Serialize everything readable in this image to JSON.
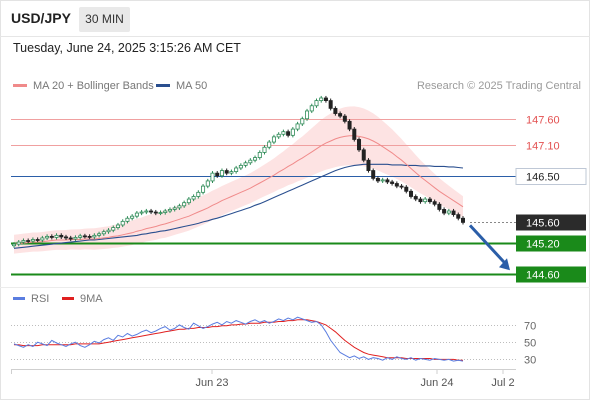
{
  "header": {
    "symbol": "USD/JPY",
    "timeframe": "30 MIN",
    "datetime": "Tuesday, June 24, 2025 3:15:26 AM CET"
  },
  "credit": "Research © 2025 Trading Central",
  "legend": {
    "ma20": {
      "label": "MA 20 + Bollinger Bands",
      "color": "#f08a8a"
    },
    "ma50": {
      "label": "MA 50",
      "color": "#2a4f8f"
    }
  },
  "rsi_legend": {
    "rsi": {
      "label": "RSI",
      "color": "#5a7de0"
    },
    "ma9": {
      "label": "9MA",
      "color": "#e02020"
    }
  },
  "colors": {
    "bull": "#2e8b57",
    "bear": "#222222",
    "resistance": "#e35050",
    "pivot": "#2b5ea8",
    "support": "#1a8a1a",
    "arrow": "#2b5ea8"
  },
  "chart_data": [
    {
      "type": "candlestick",
      "timeframe": "30 MIN",
      "x_ticks": [
        "Jun 23",
        "Jun 24",
        "Jul 2"
      ],
      "ylim": [
        144.45,
        148.0
      ],
      "levels": [
        {
          "label": "147.60",
          "value": 147.6,
          "kind": "resistance"
        },
        {
          "label": "147.10",
          "value": 147.1,
          "kind": "resistance"
        },
        {
          "label": "146.50",
          "value": 146.5,
          "kind": "pivot"
        },
        {
          "label": "145.60",
          "value": 145.6,
          "kind": "last-price"
        },
        {
          "label": "145.20",
          "value": 145.2,
          "kind": "support"
        },
        {
          "label": "144.60",
          "value": 144.6,
          "kind": "support"
        }
      ],
      "forecast_arrow": {
        "from": 145.6,
        "to": 144.6
      },
      "close": [
        145.18,
        145.22,
        145.25,
        145.24,
        145.27,
        145.26,
        145.3,
        145.33,
        145.31,
        145.35,
        145.32,
        145.3,
        145.28,
        145.31,
        145.34,
        145.33,
        145.32,
        145.35,
        145.38,
        145.42,
        145.45,
        145.5,
        145.55,
        145.62,
        145.68,
        145.72,
        145.78,
        145.8,
        145.82,
        145.8,
        145.78,
        145.79,
        145.82,
        145.85,
        145.88,
        145.92,
        145.98,
        146.05,
        146.1,
        146.18,
        146.3,
        146.4,
        146.55,
        146.5,
        146.6,
        146.55,
        146.58,
        146.65,
        146.7,
        146.75,
        146.8,
        146.85,
        146.95,
        147.05,
        147.15,
        147.25,
        147.3,
        147.35,
        147.28,
        147.4,
        147.5,
        147.6,
        147.75,
        147.85,
        147.95,
        148.0,
        147.95,
        147.8,
        147.7,
        147.65,
        147.55,
        147.4,
        147.2,
        147.0,
        146.8,
        146.6,
        146.45,
        146.4,
        146.42,
        146.38,
        146.35,
        146.3,
        146.28,
        146.2,
        146.1,
        146.05,
        146.0,
        146.05,
        146.0,
        145.95,
        145.85,
        145.78,
        145.82,
        145.75,
        145.68,
        145.6
      ],
      "ma20": [
        145.18,
        145.19,
        145.2,
        145.21,
        145.22,
        145.22,
        145.23,
        145.24,
        145.25,
        145.26,
        145.26,
        145.26,
        145.27,
        145.27,
        145.27,
        145.28,
        145.28,
        145.28,
        145.29,
        145.3,
        145.31,
        145.33,
        145.34,
        145.36,
        145.38,
        145.4,
        145.43,
        145.45,
        145.48,
        145.5,
        145.52,
        145.55,
        145.57,
        145.6,
        145.63,
        145.66,
        145.69,
        145.72,
        145.76,
        145.8,
        145.84,
        145.88,
        145.93,
        145.97,
        146.02,
        146.06,
        146.1,
        146.14,
        146.18,
        146.22,
        146.26,
        146.31,
        146.36,
        146.41,
        146.46,
        146.51,
        146.57,
        146.62,
        146.68,
        146.73,
        146.79,
        146.84,
        146.9,
        146.96,
        147.02,
        147.08,
        147.13,
        147.17,
        147.21,
        147.24,
        147.26,
        147.27,
        147.27,
        147.26,
        147.24,
        147.21,
        147.17,
        147.12,
        147.06,
        147.0,
        146.94,
        146.87,
        146.8,
        146.72,
        146.64,
        146.56,
        146.48,
        146.41,
        146.34,
        146.27,
        146.2,
        146.14,
        146.08,
        146.02,
        145.96,
        145.9
      ],
      "ma50": [
        145.1,
        145.11,
        145.12,
        145.13,
        145.14,
        145.15,
        145.16,
        145.17,
        145.18,
        145.19,
        145.2,
        145.21,
        145.22,
        145.23,
        145.24,
        145.25,
        145.26,
        145.26,
        145.27,
        145.28,
        145.29,
        145.3,
        145.31,
        145.32,
        145.33,
        145.34,
        145.35,
        145.37,
        145.38,
        145.4,
        145.41,
        145.43,
        145.44,
        145.46,
        145.48,
        145.5,
        145.52,
        145.54,
        145.56,
        145.58,
        145.61,
        145.63,
        145.66,
        145.68,
        145.71,
        145.74,
        145.77,
        145.8,
        145.83,
        145.86,
        145.89,
        145.93,
        145.96,
        146.0,
        146.04,
        146.08,
        146.12,
        146.16,
        146.2,
        146.24,
        146.28,
        146.32,
        146.36,
        146.4,
        146.44,
        146.48,
        146.52,
        146.56,
        146.6,
        146.63,
        146.66,
        146.68,
        146.7,
        146.71,
        146.72,
        146.72,
        146.72,
        146.72,
        146.72,
        146.72,
        146.71,
        146.71,
        146.71,
        146.7,
        146.7,
        146.7,
        146.69,
        146.69,
        146.69,
        146.68,
        146.68,
        146.68,
        146.67,
        146.67,
        146.66,
        146.65
      ]
    },
    {
      "type": "line",
      "title": "RSI",
      "y_ticks": [
        70,
        50,
        30
      ],
      "ylim": [
        20,
        85
      ],
      "series": [
        {
          "name": "RSI",
          "values": [
            48,
            46,
            44,
            47,
            45,
            50,
            48,
            46,
            52,
            49,
            47,
            45,
            48,
            50,
            46,
            44,
            47,
            51,
            49,
            53,
            55,
            52,
            58,
            56,
            60,
            57,
            59,
            62,
            64,
            61,
            63,
            66,
            68,
            64,
            66,
            70,
            67,
            65,
            72,
            69,
            66,
            68,
            71,
            73,
            70,
            74,
            72,
            75,
            73,
            71,
            74,
            76,
            73,
            75,
            72,
            74,
            77,
            75,
            78,
            76,
            79,
            77,
            75,
            73,
            74,
            70,
            62,
            52,
            45,
            38,
            35,
            32,
            34,
            31,
            33,
            30,
            32,
            31,
            29,
            32,
            30,
            33,
            31,
            30,
            32,
            29,
            31,
            30,
            29,
            31,
            30,
            29,
            30,
            28,
            29,
            28
          ]
        },
        {
          "name": "9MA",
          "values": [
            47,
            47,
            46,
            46,
            46,
            46,
            47,
            47,
            47,
            47,
            47,
            47,
            47,
            48,
            48,
            48,
            48,
            48,
            48,
            49,
            50,
            51,
            52,
            53,
            54,
            55,
            56,
            57,
            58,
            59,
            60,
            61,
            62,
            63,
            64,
            65,
            65,
            66,
            66,
            67,
            67,
            67,
            68,
            68,
            69,
            69,
            70,
            70,
            71,
            71,
            72,
            72,
            72,
            73,
            73,
            73,
            74,
            74,
            75,
            75,
            76,
            76,
            76,
            75,
            74,
            72,
            70,
            66,
            62,
            57,
            52,
            48,
            44,
            41,
            38,
            36,
            35,
            34,
            33,
            32,
            32,
            32,
            32,
            31,
            31,
            31,
            31,
            31,
            31,
            30,
            30,
            30,
            30,
            30,
            29,
            29
          ]
        }
      ]
    }
  ]
}
